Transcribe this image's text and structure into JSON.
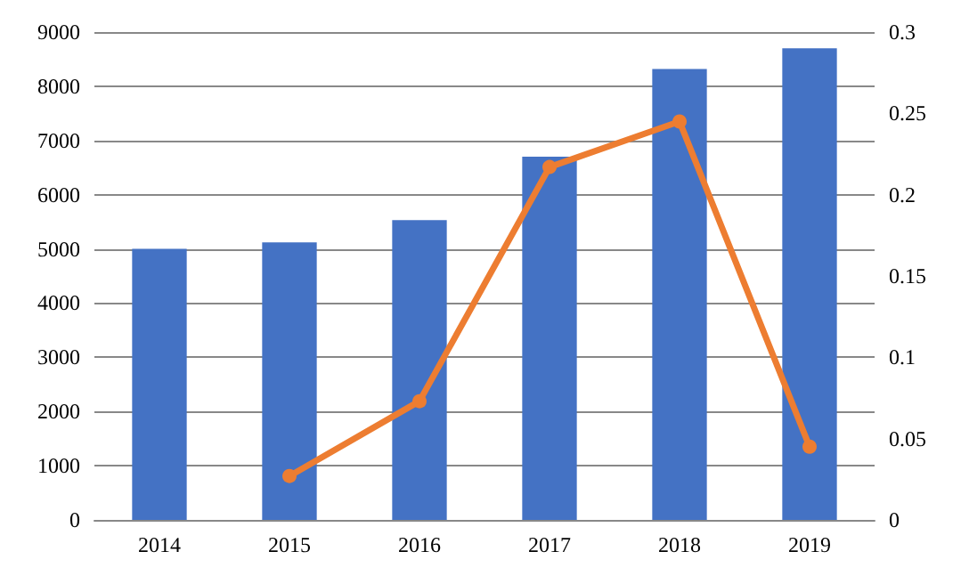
{
  "chart_data": {
    "type": "bar",
    "categories": [
      "2014",
      "2015",
      "2016",
      "2017",
      "2018",
      "2019"
    ],
    "series": [
      {
        "color": "#4472c4",
        "values": [
          5000,
          5120,
          5530,
          6700,
          8320,
          8700
        ]
      },
      {
        "type": "line",
        "axis": "y2",
        "color": "#ed7d31",
        "values": [
          null,
          0.027,
          0.073,
          0.217,
          0.245,
          0.045
        ]
      }
    ],
    "ylim": [
      0,
      9000
    ],
    "yticks": [
      0,
      1000,
      2000,
      3000,
      4000,
      5000,
      6000,
      7000,
      8000,
      9000
    ],
    "y2lim": [
      0,
      0.3
    ],
    "y2ticks": [
      0,
      0.05,
      0.1,
      0.15,
      0.2,
      0.25,
      0.3
    ],
    "grid": "y",
    "marker": "circle",
    "line_style": "solid"
  }
}
